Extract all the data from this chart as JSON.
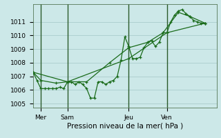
{
  "xlabel": "Pression niveau de la mer( hPa )",
  "bg_color": "#cce8e8",
  "grid_color": "#aacccc",
  "line_color": "#1a6b1a",
  "vline_color": "#2a5a2a",
  "xlim": [
    0,
    96
  ],
  "ylim": [
    1004.7,
    1012.3
  ],
  "yticks": [
    1005,
    1006,
    1007,
    1008,
    1009,
    1010,
    1011
  ],
  "xtick_labels": [
    "Mer",
    "Sam",
    "Jeu",
    "Ven"
  ],
  "xtick_positions": [
    4,
    18,
    50,
    70
  ],
  "vlines": [
    4,
    18,
    50,
    70
  ],
  "series": [
    [
      0,
      1007.3,
      2,
      1006.7,
      4,
      1006.1,
      6,
      1006.1,
      8,
      1006.1,
      10,
      1006.1,
      12,
      1006.1,
      14,
      1006.2,
      16,
      1006.1,
      18,
      1006.6,
      20,
      1006.6,
      22,
      1006.4,
      24,
      1006.6,
      26,
      1006.4,
      28,
      1006.1,
      30,
      1005.4,
      32,
      1005.4,
      34,
      1006.6,
      36,
      1006.6,
      38,
      1006.4,
      40,
      1006.6,
      42,
      1006.7,
      44,
      1007.0,
      46,
      1008.2,
      48,
      1009.9,
      50,
      1009.2,
      52,
      1008.3,
      54,
      1008.3,
      56,
      1008.4,
      58,
      1009.1,
      60,
      1009.5,
      62,
      1009.6,
      64,
      1009.2,
      66,
      1009.5,
      68,
      1010.2,
      70,
      1010.2,
      72,
      1011.0,
      74,
      1011.5,
      76,
      1011.8,
      78,
      1011.9,
      80,
      1011.6,
      82,
      1011.4,
      84,
      1011.1,
      86,
      1011.0,
      88,
      1010.9,
      90,
      1010.9
    ],
    [
      0,
      1007.3,
      4,
      1006.7,
      12,
      1006.5,
      18,
      1006.6,
      28,
      1006.6,
      40,
      1008.0,
      50,
      1009.1,
      60,
      1009.5,
      68,
      1010.2,
      76,
      1011.7,
      82,
      1011.4,
      90,
      1010.9
    ],
    [
      0,
      1007.3,
      18,
      1006.6,
      50,
      1008.3,
      70,
      1010.2,
      90,
      1010.9
    ]
  ]
}
